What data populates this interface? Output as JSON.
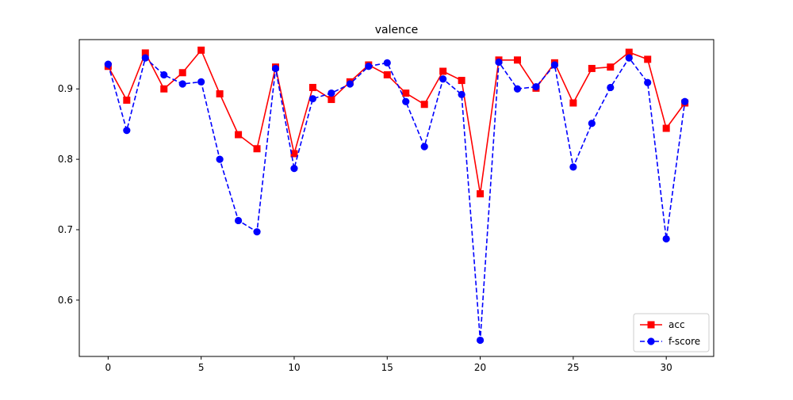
{
  "chart_data": {
    "type": "line",
    "title": "valence",
    "xlabel": "",
    "ylabel": "",
    "xlim": [
      -1.55,
      32.55
    ],
    "ylim": [
      0.52,
      0.97
    ],
    "xticks": [
      0,
      5,
      10,
      15,
      20,
      25,
      30
    ],
    "yticks": [
      0.6,
      0.7,
      0.8,
      0.9
    ],
    "grid": false,
    "legend_position": "lower right",
    "x": [
      0,
      1,
      2,
      3,
      4,
      5,
      6,
      7,
      8,
      9,
      10,
      11,
      12,
      13,
      14,
      15,
      16,
      17,
      18,
      19,
      20,
      21,
      22,
      23,
      24,
      25,
      26,
      27,
      28,
      29,
      30,
      31
    ],
    "series": [
      {
        "name": "acc",
        "color": "#ff0000",
        "linestyle": "solid",
        "marker": "square",
        "values": [
          0.932,
          0.884,
          0.951,
          0.9,
          0.923,
          0.955,
          0.893,
          0.835,
          0.815,
          0.931,
          0.808,
          0.902,
          0.885,
          0.91,
          0.934,
          0.92,
          0.894,
          0.878,
          0.925,
          0.912,
          0.751,
          0.941,
          0.941,
          0.901,
          0.937,
          0.88,
          0.929,
          0.931,
          0.952,
          0.942,
          0.844,
          0.88
        ]
      },
      {
        "name": "f-score",
        "color": "#0000ff",
        "linestyle": "dashed",
        "marker": "circle",
        "values": [
          0.935,
          0.841,
          0.944,
          0.92,
          0.907,
          0.91,
          0.8,
          0.713,
          0.697,
          0.929,
          0.787,
          0.886,
          0.894,
          0.907,
          0.932,
          0.937,
          0.882,
          0.818,
          0.914,
          0.892,
          0.543,
          0.938,
          0.9,
          0.903,
          0.934,
          0.789,
          0.851,
          0.902,
          0.944,
          0.909,
          0.687,
          0.882
        ]
      }
    ]
  }
}
